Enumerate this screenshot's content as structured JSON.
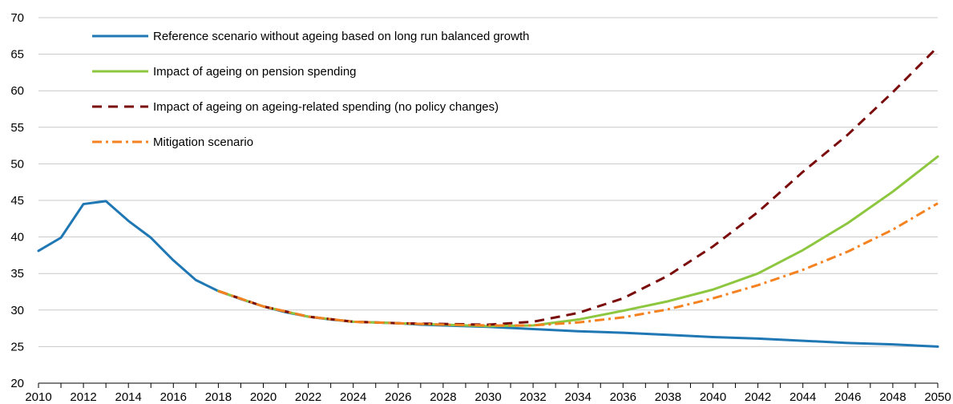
{
  "chart_data": {
    "type": "line",
    "title": "",
    "xlabel": "",
    "ylabel": "",
    "xlim": [
      2010,
      2050
    ],
    "ylim": [
      20,
      70
    ],
    "yticks": [
      20,
      25,
      30,
      35,
      40,
      45,
      50,
      55,
      60,
      65,
      70
    ],
    "xticks": [
      2010,
      2012,
      2014,
      2016,
      2018,
      2020,
      2022,
      2024,
      2026,
      2028,
      2030,
      2032,
      2034,
      2036,
      2038,
      2040,
      2042,
      2044,
      2046,
      2048,
      2050
    ],
    "grid": "horizontal",
    "legend_position": "top-left",
    "series": [
      {
        "name": "Reference scenario without ageing based on long run balanced growth",
        "color": "#1f77b4",
        "style": "solid",
        "x": [
          2010,
          2011,
          2012,
          2013,
          2014,
          2015,
          2016,
          2017,
          2018,
          2019,
          2020,
          2021,
          2022,
          2023,
          2024,
          2025,
          2026,
          2027,
          2028,
          2029,
          2030,
          2032,
          2034,
          2036,
          2038,
          2040,
          2042,
          2044,
          2046,
          2048,
          2050
        ],
        "values": [
          38.1,
          39.9,
          44.5,
          44.9,
          42.2,
          39.9,
          36.8,
          34.1,
          32.6,
          31.5,
          30.5,
          29.7,
          29.1,
          28.7,
          28.4,
          28.3,
          28.2,
          28.0,
          27.9,
          27.8,
          27.7,
          27.4,
          27.1,
          26.9,
          26.6,
          26.3,
          26.1,
          25.8,
          25.5,
          25.3,
          25.0
        ]
      },
      {
        "name": "Impact of ageing on pension spending",
        "color": "#8dc63f",
        "style": "solid",
        "x": [
          2018,
          2020,
          2022,
          2024,
          2026,
          2028,
          2030,
          2032,
          2034,
          2036,
          2038,
          2040,
          2042,
          2044,
          2046,
          2048,
          2050
        ],
        "values": [
          32.6,
          30.5,
          29.1,
          28.4,
          28.2,
          28.0,
          27.8,
          27.9,
          28.7,
          29.9,
          31.2,
          32.8,
          35.0,
          38.2,
          41.9,
          46.2,
          51.0
        ]
      },
      {
        "name": "Impact of ageing on ageing-related spending (no policy changes)",
        "color": "#7b0c0c",
        "style": "dashed",
        "x": [
          2018,
          2020,
          2022,
          2024,
          2026,
          2028,
          2030,
          2032,
          2034,
          2036,
          2038,
          2040,
          2042,
          2044,
          2046,
          2048,
          2050
        ],
        "values": [
          32.6,
          30.5,
          29.1,
          28.4,
          28.2,
          28.1,
          28.0,
          28.4,
          29.6,
          31.6,
          34.7,
          38.7,
          43.4,
          48.9,
          54.0,
          59.8,
          66.0
        ]
      },
      {
        "name": "Mitigation scenario",
        "color": "#f58220",
        "style": "dashdot",
        "x": [
          2018,
          2020,
          2022,
          2024,
          2026,
          2028,
          2030,
          2032,
          2034,
          2036,
          2038,
          2040,
          2042,
          2044,
          2046,
          2048,
          2050
        ],
        "values": [
          32.6,
          30.5,
          29.1,
          28.4,
          28.2,
          28.0,
          27.9,
          27.9,
          28.3,
          29.0,
          30.1,
          31.6,
          33.4,
          35.5,
          38.0,
          41.0,
          44.6
        ]
      }
    ]
  }
}
